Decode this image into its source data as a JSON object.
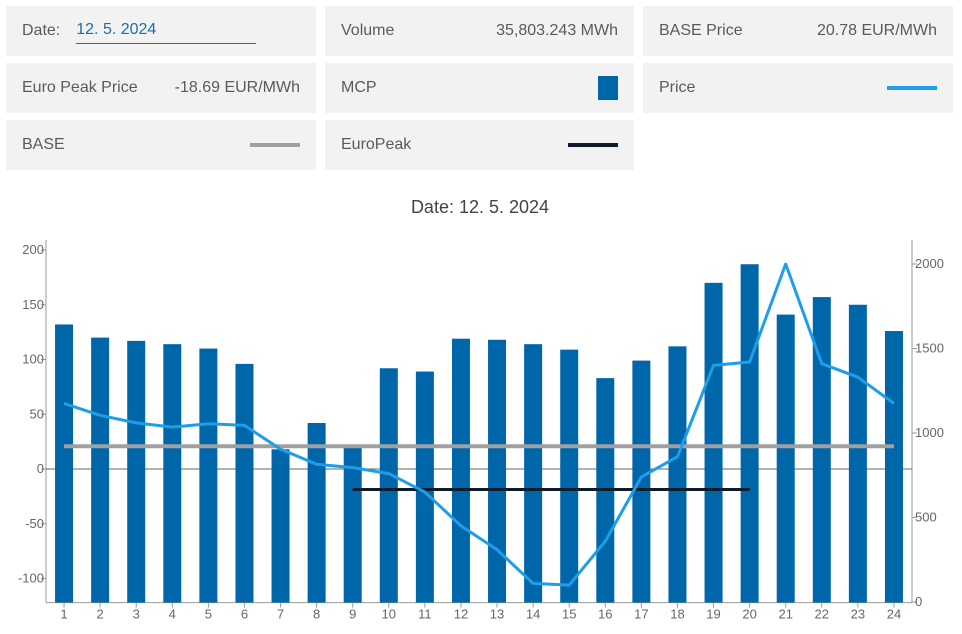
{
  "cards": {
    "date": {
      "label": "Date:",
      "value": "12. 5. 2024"
    },
    "volume": {
      "label": "Volume",
      "value": "35,803.243 MWh"
    },
    "base_price": {
      "label": "BASE Price",
      "value": "20.78 EUR/MWh"
    },
    "euro_peak_price": {
      "label": "Euro Peak Price",
      "value": "-18.69 EUR/MWh"
    },
    "mcp": {
      "label": "MCP"
    },
    "price": {
      "label": "Price"
    },
    "base": {
      "label": "BASE"
    },
    "europeak": {
      "label": "EuroPeak"
    }
  },
  "colors": {
    "mcp_bar": "#0066aa",
    "price_line": "#1e9ee8",
    "base_line": "#a0a0a0",
    "europeak_line": "#0d1b2a"
  },
  "chart_data": {
    "type": "bar",
    "title": "Date: 12. 5. 2024",
    "categories": [
      "1",
      "2",
      "3",
      "4",
      "5",
      "6",
      "7",
      "8",
      "9",
      "10",
      "11",
      "12",
      "13",
      "14",
      "15",
      "16",
      "17",
      "18",
      "19",
      "20",
      "21",
      "22",
      "23",
      "24"
    ],
    "series": [
      {
        "name": "MCP",
        "type": "bar",
        "axis": "left",
        "values": [
          132,
          120,
          117,
          114,
          110,
          96,
          18,
          42,
          20,
          92,
          89,
          119,
          118,
          114,
          109,
          83,
          99,
          112,
          170,
          187,
          141,
          157,
          150,
          126
        ]
      },
      {
        "name": "Price",
        "type": "line",
        "axis": "right",
        "values": [
          1175,
          1105,
          1060,
          1035,
          1055,
          1045,
          905,
          815,
          795,
          760,
          650,
          450,
          310,
          110,
          100,
          360,
          740,
          860,
          1400,
          1420,
          2000,
          1410,
          1330,
          1175
        ]
      },
      {
        "name": "BASE",
        "type": "line",
        "axis": "left",
        "from": 1,
        "to": 24,
        "value": 20.78
      },
      {
        "name": "EuroPeak",
        "type": "line",
        "axis": "left",
        "from": 9,
        "to": 20,
        "value": -18.69
      }
    ],
    "yleft": {
      "ticks": [
        200,
        150,
        100,
        50,
        0,
        -50,
        -100
      ],
      "ylim": [
        -122,
        200
      ]
    },
    "yright": {
      "ticks": [
        2000,
        1500,
        1000,
        500,
        0
      ],
      "ylim": [
        0,
        2000
      ]
    },
    "grid": false,
    "legend": "cards-above"
  }
}
